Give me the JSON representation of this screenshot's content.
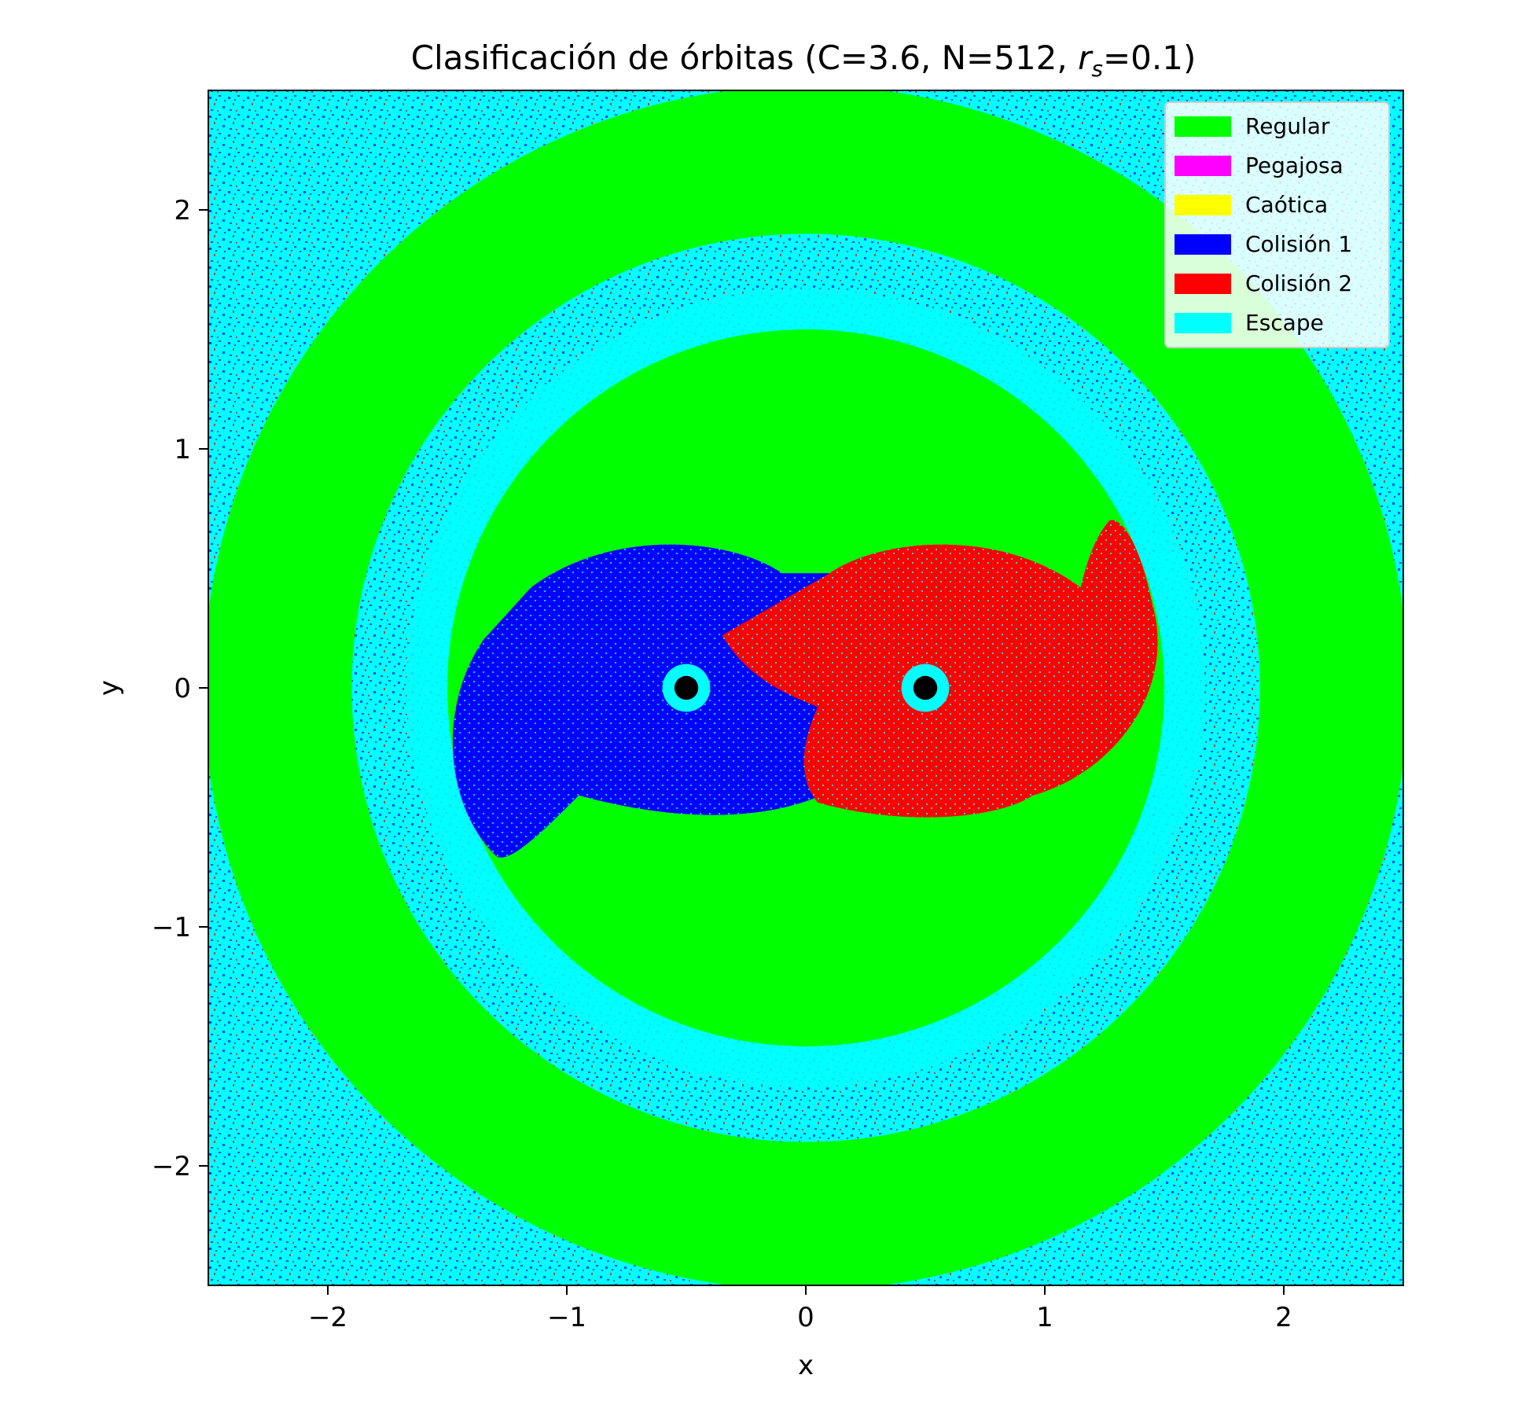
{
  "chart_data": {
    "type": "heatmap",
    "title_main": "Clasificación de órbitas (C=3.6, N=512, ",
    "title_var": "r",
    "title_sub": "s",
    "title_tail": "=0.1)",
    "xlabel": "x",
    "ylabel": "y",
    "xlim": [
      -2.5,
      2.5
    ],
    "ylim": [
      -2.5,
      2.5
    ],
    "grid": false,
    "legend_position": "top-right",
    "x_ticks": [
      {
        "value": -2,
        "label": "−2"
      },
      {
        "value": -1,
        "label": "−1"
      },
      {
        "value": 0,
        "label": "0"
      },
      {
        "value": 1,
        "label": "1"
      },
      {
        "value": 2,
        "label": "2"
      }
    ],
    "y_ticks": [
      {
        "value": 2,
        "label": "2"
      },
      {
        "value": 1,
        "label": "1"
      },
      {
        "value": 0,
        "label": "0"
      },
      {
        "value": -1,
        "label": "−1"
      },
      {
        "value": -2,
        "label": "−2"
      }
    ],
    "categories": [
      {
        "name": "Regular",
        "color": "#00ff00"
      },
      {
        "name": "Pegajosa",
        "color": "#ff00ff"
      },
      {
        "name": "Caótica",
        "color": "#ffff00"
      },
      {
        "name": "Colisión 1",
        "color": "#0000ff"
      },
      {
        "name": "Colisión 2",
        "color": "#ff0000"
      },
      {
        "name": "Escape",
        "color": "#00ffff"
      }
    ],
    "bodies": [
      {
        "x": -0.5,
        "y": 0
      },
      {
        "x": 0.5,
        "y": 0
      }
    ],
    "regions": {
      "outer_regular_ring": {
        "r_inner": 1.9,
        "r_outer": 2.52,
        "category": "Regular"
      },
      "inner_regular_disk": {
        "r": 1.5,
        "category": "Regular"
      },
      "basin_1": {
        "category": "Colisión 1",
        "center_x": -0.5
      },
      "basin_2": {
        "category": "Colisión 2",
        "center_x": 0.5
      }
    }
  }
}
